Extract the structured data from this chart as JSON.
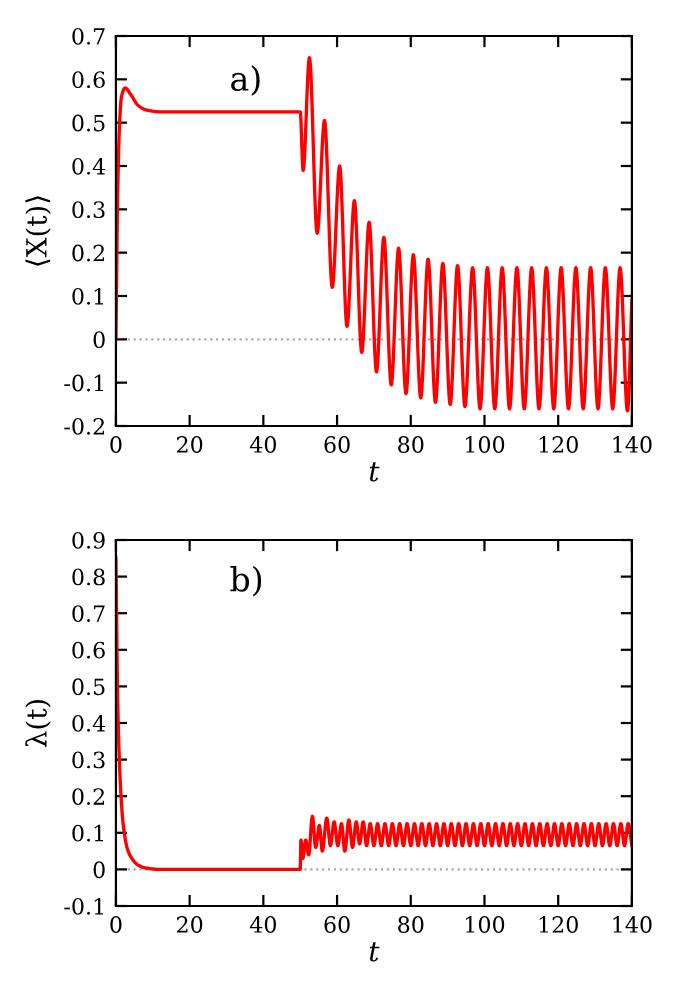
{
  "chart_data": [
    {
      "type": "line",
      "xlabel": "t",
      "ylabel": "⟨X(t)⟩",
      "annotations": [
        "a)"
      ],
      "series": [
        {
          "color": "#ff0000",
          "x": [
            0,
            0.5,
            1,
            1.5,
            2.5,
            4,
            6,
            8,
            12,
            50,
            50.8,
            52.5,
            54.6,
            56.6,
            58.7,
            60.7,
            62.7,
            64.7,
            66.7,
            68.7,
            70.7,
            72.7,
            74.7,
            76.7,
            78.7,
            80.7,
            82.7,
            84.7,
            86.7,
            88.7,
            90.7,
            92.7,
            94.7,
            96.8,
            98.8,
            100.8,
            102.8,
            104.8,
            106.8,
            108.8,
            110.8,
            112.8,
            114.8,
            116.8,
            118.8,
            120.8,
            122.8,
            124.8,
            126.8,
            128.8,
            130.8,
            132.8,
            134.8,
            136.8,
            138.8,
            140
          ],
          "values": [
            0,
            0.35,
            0.5,
            0.56,
            0.58,
            0.565,
            0.54,
            0.53,
            0.525,
            0.525,
            0.39,
            0.65,
            0.245,
            0.505,
            0.12,
            0.4,
            0.03,
            0.32,
            -0.03,
            0.27,
            -0.075,
            0.235,
            -0.105,
            0.21,
            -0.125,
            0.195,
            -0.135,
            0.185,
            -0.145,
            0.175,
            -0.15,
            0.17,
            -0.155,
            0.165,
            -0.16,
            0.165,
            -0.16,
            0.165,
            -0.16,
            0.165,
            -0.16,
            0.165,
            -0.16,
            0.165,
            -0.16,
            0.165,
            -0.16,
            0.165,
            -0.16,
            0.165,
            -0.16,
            0.165,
            -0.16,
            0.165,
            -0.165,
            0.09
          ]
        }
      ],
      "xlim": [
        0,
        140
      ],
      "xticks": [
        0,
        20,
        40,
        60,
        80,
        100,
        120,
        140
      ],
      "ylim": [
        -0.2,
        0.7
      ],
      "yticks": [
        -0.2,
        -0.1,
        0,
        0.1,
        0.2,
        0.3,
        0.4,
        0.5,
        0.6,
        0.7
      ],
      "ref_lines": [
        {
          "axis": "y",
          "value": 0,
          "label": null,
          "color": "#aaaaaa",
          "line_style": "dotted"
        }
      ],
      "grid": false,
      "legend": false,
      "marker": "none",
      "line_style": "solid"
    },
    {
      "type": "line",
      "xlabel": "t",
      "ylabel": "λ(t)",
      "annotations": [
        "b)"
      ],
      "series": [
        {
          "color": "#ff0000",
          "x": [
            0,
            0.5,
            1,
            1.5,
            2,
            3,
            4,
            6,
            8,
            12,
            50,
            50.2,
            50.7,
            51.5,
            52.3,
            53.3,
            54.2,
            55.2,
            56,
            57.2,
            58.2,
            59.2,
            60.2,
            61.2,
            62.1,
            63.2,
            64.2,
            65.2,
            66.1,
            67.1,
            68,
            69,
            70,
            71,
            72,
            73,
            74,
            75,
            76,
            77,
            78,
            79,
            80,
            81,
            82,
            83,
            84,
            85,
            86,
            87,
            88,
            89,
            90,
            91,
            92,
            93,
            94,
            95,
            96,
            97,
            98,
            99,
            100,
            101,
            102,
            103,
            104,
            105,
            106,
            107,
            108,
            109,
            110,
            111,
            112,
            113,
            114,
            115,
            116,
            117,
            118,
            119,
            120,
            121,
            122,
            123,
            124,
            125,
            126,
            127,
            128,
            129,
            130,
            131,
            132,
            133,
            134,
            135,
            136,
            137,
            138,
            139,
            140
          ],
          "values": [
            0.85,
            0.45,
            0.28,
            0.18,
            0.12,
            0.06,
            0.035,
            0.012,
            0.004,
            0,
            0,
            0.08,
            0.03,
            0.08,
            0.04,
            0.145,
            0.06,
            0.12,
            0.05,
            0.14,
            0.065,
            0.13,
            0.065,
            0.125,
            0.05,
            0.135,
            0.06,
            0.13,
            0.07,
            0.13,
            0.065,
            0.125,
            0.065,
            0.125,
            0.065,
            0.125,
            0.065,
            0.125,
            0.065,
            0.125,
            0.065,
            0.125,
            0.065,
            0.125,
            0.065,
            0.125,
            0.065,
            0.125,
            0.065,
            0.125,
            0.065,
            0.125,
            0.065,
            0.125,
            0.065,
            0.125,
            0.065,
            0.125,
            0.065,
            0.125,
            0.065,
            0.125,
            0.065,
            0.125,
            0.065,
            0.125,
            0.065,
            0.125,
            0.065,
            0.125,
            0.065,
            0.125,
            0.065,
            0.125,
            0.065,
            0.125,
            0.065,
            0.125,
            0.065,
            0.125,
            0.065,
            0.125,
            0.065,
            0.125,
            0.065,
            0.125,
            0.065,
            0.125,
            0.065,
            0.125,
            0.065,
            0.125,
            0.065,
            0.125,
            0.065,
            0.125,
            0.065,
            0.125,
            0.065,
            0.125,
            0.065,
            0.125,
            0.065
          ]
        }
      ],
      "xlim": [
        0,
        140
      ],
      "xticks": [
        0,
        20,
        40,
        60,
        80,
        100,
        120,
        140
      ],
      "ylim": [
        -0.1,
        0.9
      ],
      "yticks": [
        -0.1,
        0,
        0.1,
        0.2,
        0.3,
        0.4,
        0.5,
        0.6,
        0.7,
        0.8,
        0.9
      ],
      "ref_lines": [
        {
          "axis": "y",
          "value": 0,
          "label": null,
          "color": "#aaaaaa",
          "line_style": "dotted"
        }
      ],
      "grid": false,
      "legend": false,
      "marker": "none",
      "line_style": "solid"
    }
  ]
}
